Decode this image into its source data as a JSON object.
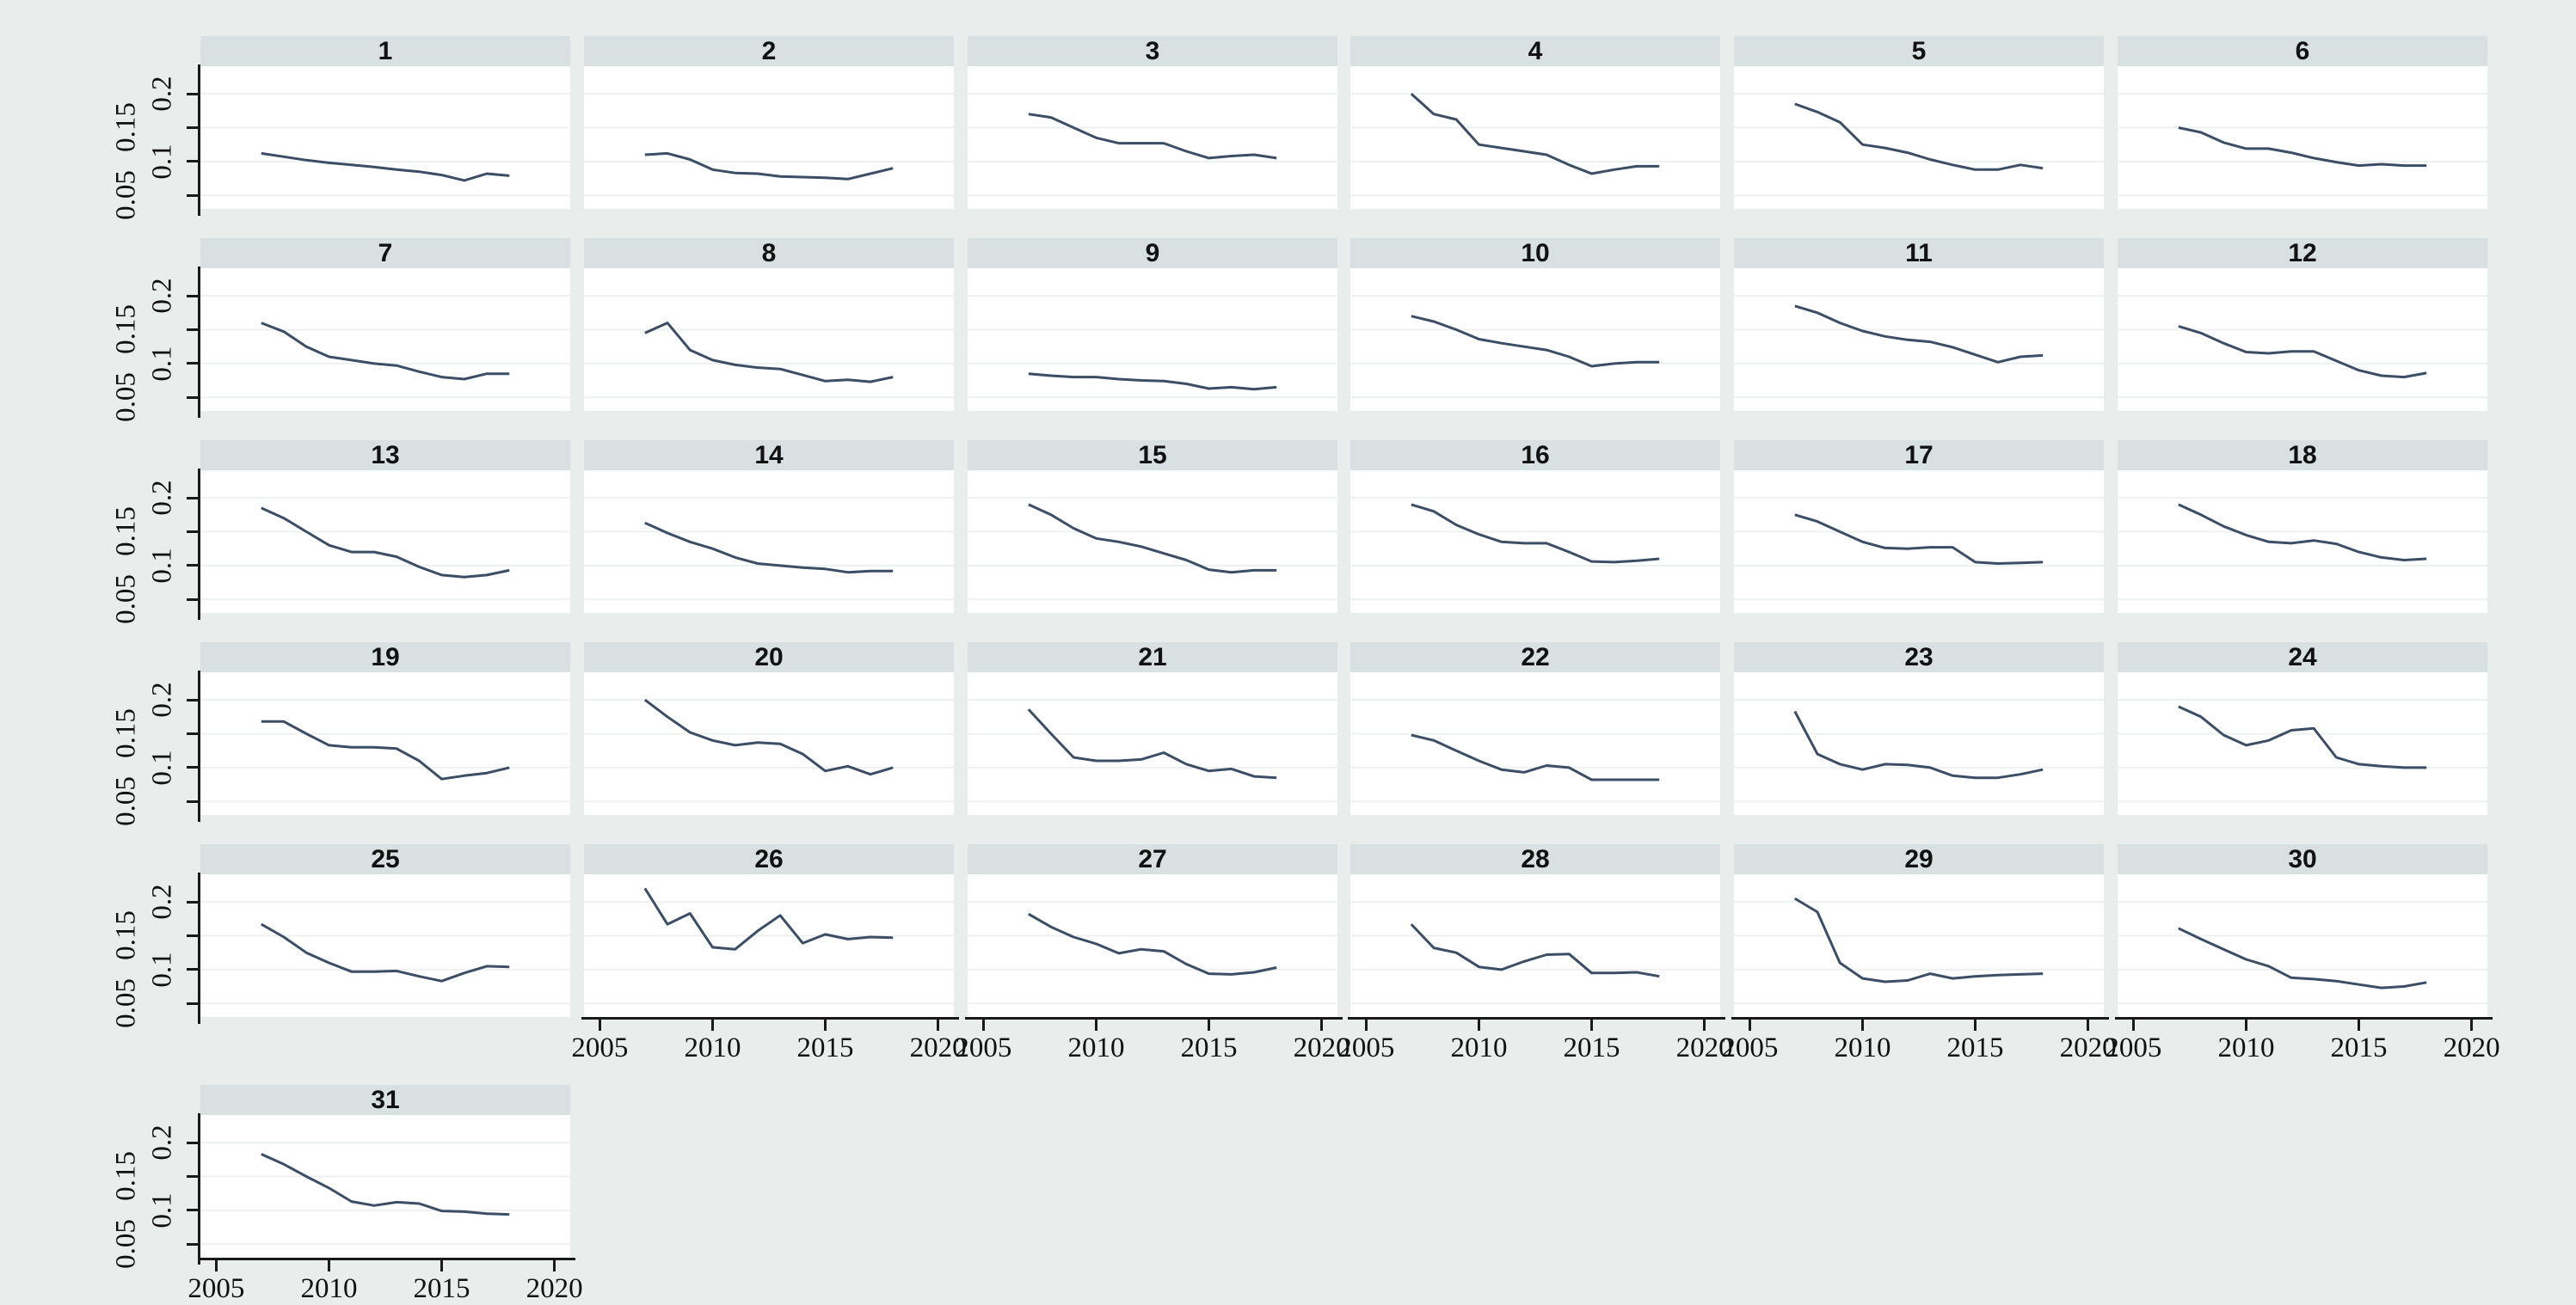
{
  "figure": {
    "background_color": "#e9eeec",
    "strip_color": "#d8e0e2",
    "plot_background": "#ffffff",
    "gridline_color": "#eef1f1",
    "line_color": "#3c4e66",
    "axis_color": "#1a1a1a"
  },
  "chart_data": {
    "type": "line",
    "layout": "small-multiples-6col",
    "x": [
      2007,
      2008,
      2009,
      2010,
      2011,
      2012,
      2013,
      2014,
      2015,
      2016,
      2017,
      2018
    ],
    "x_ticks": [
      2005,
      2010,
      2015,
      2020
    ],
    "x_tick_labels": [
      "2005",
      "2010",
      "2015",
      "2020"
    ],
    "y_ticks": [
      0.05,
      0.1,
      0.15,
      0.2
    ],
    "y_tick_labels": [
      "0.05",
      "0.1",
      "0.15",
      "0.2"
    ],
    "xlim": [
      2004.3,
      2020.7
    ],
    "ylim": [
      0.03,
      0.2407
    ],
    "grid": true,
    "legend": "none",
    "panels": [
      {
        "label": "1",
        "values": [
          0.112,
          0.107,
          0.102,
          0.098,
          0.095,
          0.092,
          0.088,
          0.085,
          0.08,
          0.072,
          0.082,
          0.079
        ]
      },
      {
        "label": "2",
        "values": [
          0.11,
          0.112,
          0.103,
          0.088,
          0.083,
          0.082,
          0.078,
          0.077,
          0.076,
          0.074,
          0.082,
          0.09
        ]
      },
      {
        "label": "3",
        "values": [
          0.17,
          0.165,
          0.15,
          0.135,
          0.127,
          0.127,
          0.127,
          0.115,
          0.105,
          0.108,
          0.11,
          0.105
        ]
      },
      {
        "label": "4",
        "values": [
          0.2,
          0.17,
          0.162,
          0.125,
          0.12,
          0.115,
          0.11,
          0.095,
          0.082,
          0.088,
          0.093,
          0.093
        ]
      },
      {
        "label": "5",
        "values": [
          0.185,
          0.173,
          0.158,
          0.125,
          0.12,
          0.113,
          0.103,
          0.095,
          0.088,
          0.088,
          0.095,
          0.09
        ]
      },
      {
        "label": "6",
        "values": [
          0.15,
          0.143,
          0.128,
          0.119,
          0.119,
          0.113,
          0.105,
          0.099,
          0.094,
          0.096,
          0.094,
          0.094
        ]
      },
      {
        "label": "7",
        "values": [
          0.16,
          0.147,
          0.125,
          0.11,
          0.105,
          0.1,
          0.097,
          0.088,
          0.08,
          0.077,
          0.085,
          0.085
        ]
      },
      {
        "label": "8",
        "values": [
          0.145,
          0.16,
          0.12,
          0.105,
          0.098,
          0.094,
          0.092,
          0.083,
          0.074,
          0.076,
          0.073,
          0.08
        ]
      },
      {
        "label": "9",
        "values": [
          0.085,
          0.082,
          0.08,
          0.08,
          0.077,
          0.075,
          0.074,
          0.07,
          0.063,
          0.065,
          0.062,
          0.065
        ]
      },
      {
        "label": "10",
        "values": [
          0.17,
          0.162,
          0.15,
          0.136,
          0.13,
          0.125,
          0.12,
          0.11,
          0.096,
          0.1,
          0.102,
          0.102
        ]
      },
      {
        "label": "11",
        "values": [
          0.185,
          0.175,
          0.16,
          0.148,
          0.14,
          0.135,
          0.132,
          0.124,
          0.113,
          0.102,
          0.11,
          0.112
        ]
      },
      {
        "label": "12",
        "values": [
          0.155,
          0.145,
          0.13,
          0.117,
          0.115,
          0.118,
          0.118,
          0.104,
          0.09,
          0.082,
          0.08,
          0.086
        ]
      },
      {
        "label": "13",
        "values": [
          0.185,
          0.17,
          0.15,
          0.13,
          0.12,
          0.12,
          0.113,
          0.098,
          0.086,
          0.083,
          0.086,
          0.093
        ]
      },
      {
        "label": "14",
        "values": [
          0.163,
          0.148,
          0.135,
          0.125,
          0.112,
          0.103,
          0.1,
          0.097,
          0.095,
          0.09,
          0.092,
          0.092
        ]
      },
      {
        "label": "15",
        "values": [
          0.19,
          0.175,
          0.155,
          0.14,
          0.135,
          0.128,
          0.118,
          0.108,
          0.094,
          0.09,
          0.093,
          0.093
        ]
      },
      {
        "label": "16",
        "values": [
          0.19,
          0.18,
          0.16,
          0.146,
          0.135,
          0.133,
          0.133,
          0.12,
          0.106,
          0.105,
          0.107,
          0.11
        ]
      },
      {
        "label": "17",
        "values": [
          0.175,
          0.165,
          0.15,
          0.135,
          0.126,
          0.125,
          0.127,
          0.127,
          0.105,
          0.103,
          0.104,
          0.105
        ]
      },
      {
        "label": "18",
        "values": [
          0.19,
          0.175,
          0.158,
          0.145,
          0.135,
          0.133,
          0.137,
          0.132,
          0.12,
          0.112,
          0.108,
          0.11
        ]
      },
      {
        "label": "19",
        "values": [
          0.168,
          0.168,
          0.15,
          0.133,
          0.13,
          0.13,
          0.128,
          0.11,
          0.083,
          0.088,
          0.092,
          0.1
        ]
      },
      {
        "label": "20",
        "values": [
          0.2,
          0.175,
          0.152,
          0.14,
          0.133,
          0.137,
          0.135,
          0.12,
          0.095,
          0.102,
          0.09,
          0.1
        ]
      },
      {
        "label": "21",
        "values": [
          0.186,
          0.15,
          0.115,
          0.11,
          0.11,
          0.112,
          0.122,
          0.105,
          0.095,
          0.098,
          0.087,
          0.085
        ]
      },
      {
        "label": "22",
        "values": [
          0.148,
          0.14,
          0.125,
          0.11,
          0.097,
          0.093,
          0.103,
          0.1,
          0.082,
          0.082,
          0.082,
          0.082
        ]
      },
      {
        "label": "23",
        "values": [
          0.183,
          0.12,
          0.105,
          0.097,
          0.105,
          0.104,
          0.1,
          0.088,
          0.085,
          0.085,
          0.09,
          0.097
        ]
      },
      {
        "label": "24",
        "values": [
          0.19,
          0.175,
          0.148,
          0.133,
          0.14,
          0.155,
          0.158,
          0.115,
          0.105,
          0.102,
          0.1,
          0.1
        ]
      },
      {
        "label": "25",
        "values": [
          0.167,
          0.148,
          0.125,
          0.11,
          0.097,
          0.097,
          0.098,
          0.09,
          0.083,
          0.095,
          0.105,
          0.104
        ]
      },
      {
        "label": "26",
        "values": [
          0.22,
          0.167,
          0.183,
          0.133,
          0.13,
          0.157,
          0.18,
          0.139,
          0.152,
          0.145,
          0.148,
          0.147
        ]
      },
      {
        "label": "27",
        "values": [
          0.182,
          0.163,
          0.148,
          0.138,
          0.124,
          0.13,
          0.127,
          0.108,
          0.094,
          0.093,
          0.096,
          0.103
        ]
      },
      {
        "label": "28",
        "values": [
          0.167,
          0.132,
          0.125,
          0.104,
          0.1,
          0.112,
          0.122,
          0.123,
          0.095,
          0.095,
          0.096,
          0.09
        ]
      },
      {
        "label": "29",
        "values": [
          0.205,
          0.185,
          0.11,
          0.087,
          0.082,
          0.084,
          0.094,
          0.087,
          0.09,
          0.092,
          0.093,
          0.094
        ]
      },
      {
        "label": "30",
        "values": [
          0.161,
          0.145,
          0.13,
          0.115,
          0.105,
          0.088,
          0.086,
          0.083,
          0.078,
          0.073,
          0.075,
          0.081
        ]
      },
      {
        "label": "31",
        "values": [
          0.183,
          0.168,
          0.15,
          0.133,
          0.113,
          0.107,
          0.112,
          0.11,
          0.099,
          0.098,
          0.095,
          0.094
        ]
      }
    ]
  }
}
